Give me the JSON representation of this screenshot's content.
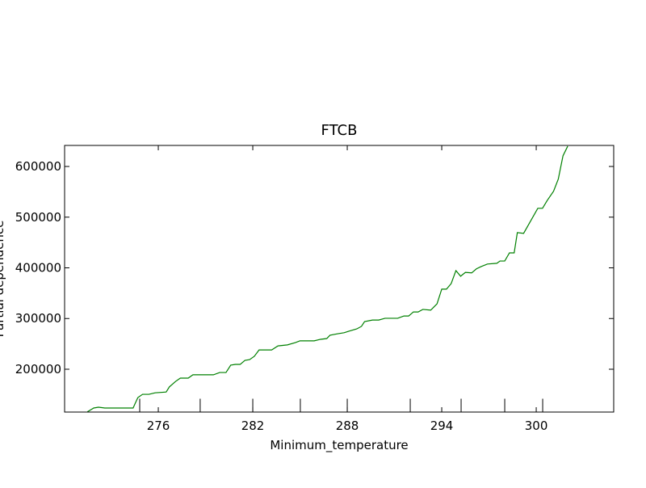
{
  "chart_data": {
    "type": "line",
    "title": "FTCB",
    "x_label": "Minimum_temperature",
    "y_label": "Partial dependence",
    "xlim": [
      270.05,
      304.92
    ],
    "ylim": [
      115500,
      641500
    ],
    "xticks": [
      276,
      282,
      288,
      294,
      300
    ],
    "yticks": [
      200000,
      300000,
      400000,
      500000,
      600000
    ],
    "deciles": [
      274.82,
      278.66,
      282.0,
      285.02,
      288.0,
      292.0,
      295.23,
      298.0,
      300.41
    ],
    "grid": false,
    "series": [
      {
        "name": "FTCB",
        "color": "#008000",
        "x": [
          271.5,
          271.9,
          272.2,
          272.6,
          274.4,
          274.7,
          275.0,
          275.4,
          275.8,
          276.5,
          276.7,
          277.1,
          277.4,
          277.9,
          278.2,
          279.5,
          279.9,
          280.3,
          280.6,
          280.9,
          281.2,
          281.5,
          281.8,
          282.1,
          282.4,
          283.2,
          283.6,
          284.2,
          284.7,
          285.0,
          285.9,
          286.3,
          286.7,
          286.9,
          287.4,
          287.8,
          288.1,
          288.6,
          288.9,
          289.1,
          289.6,
          290.0,
          290.4,
          291.2,
          291.6,
          291.9,
          292.2,
          292.5,
          292.8,
          293.3,
          293.7,
          294.0,
          294.3,
          294.6,
          294.9,
          295.2,
          295.5,
          295.9,
          296.2,
          296.5,
          296.9,
          297.5,
          297.7,
          298.0,
          298.3,
          298.6,
          298.8,
          299.2,
          300.1,
          300.4,
          300.7,
          301.1,
          301.4,
          301.7,
          302.0
        ],
        "values": [
          116000,
          123500,
          125000,
          123500,
          123500,
          144000,
          150500,
          150500,
          153500,
          155000,
          165000,
          176000,
          182500,
          182500,
          189000,
          189000,
          193500,
          193500,
          208000,
          209500,
          209500,
          217500,
          219000,
          225500,
          238000,
          238000,
          246000,
          248000,
          252500,
          256000,
          256000,
          259000,
          260500,
          267000,
          270000,
          272000,
          275000,
          279500,
          284500,
          294000,
          297000,
          297000,
          300500,
          300500,
          305000,
          305000,
          313000,
          313000,
          318000,
          316500,
          329000,
          358000,
          358000,
          369000,
          394500,
          383500,
          391000,
          390000,
          398000,
          402500,
          407500,
          409000,
          413500,
          413500,
          429500,
          429500,
          469500,
          468000,
          517500,
          517500,
          533000,
          551000,
          575000,
          621000,
          640000
        ]
      }
    ]
  }
}
